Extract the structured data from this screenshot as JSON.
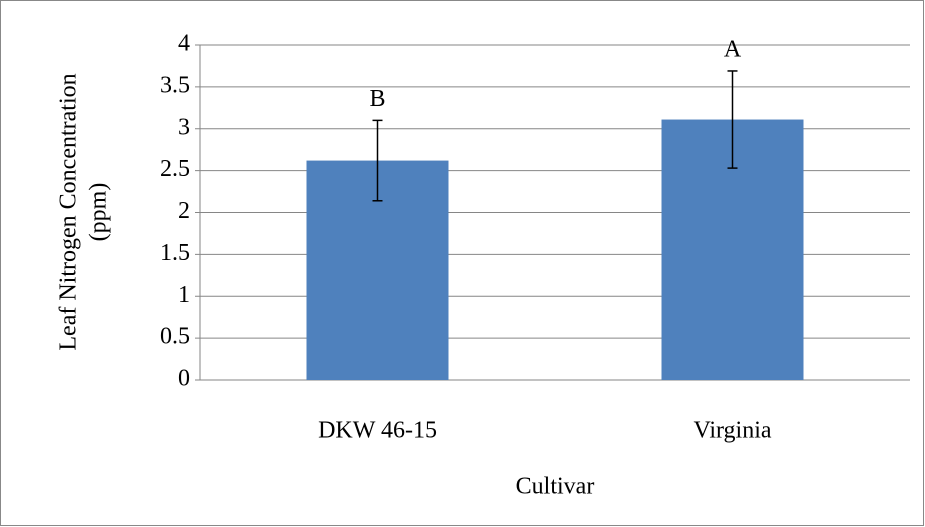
{
  "chart_data": {
    "type": "bar",
    "ylabel": [
      "Leaf Nitrogen Concentration",
      "(ppm)"
    ],
    "xlabel": "Cultivar",
    "categories": [
      "DKW 46-15",
      "Virginia"
    ],
    "values": [
      2.62,
      3.11
    ],
    "errors": [
      0.48,
      0.58
    ],
    "annotations": [
      "B",
      "A"
    ],
    "color": "#4f81bd",
    "ylim": [
      0,
      4
    ],
    "yticks": [
      0,
      0.5,
      1,
      1.5,
      2,
      2.5,
      3,
      3.5,
      4
    ],
    "grid": true
  }
}
